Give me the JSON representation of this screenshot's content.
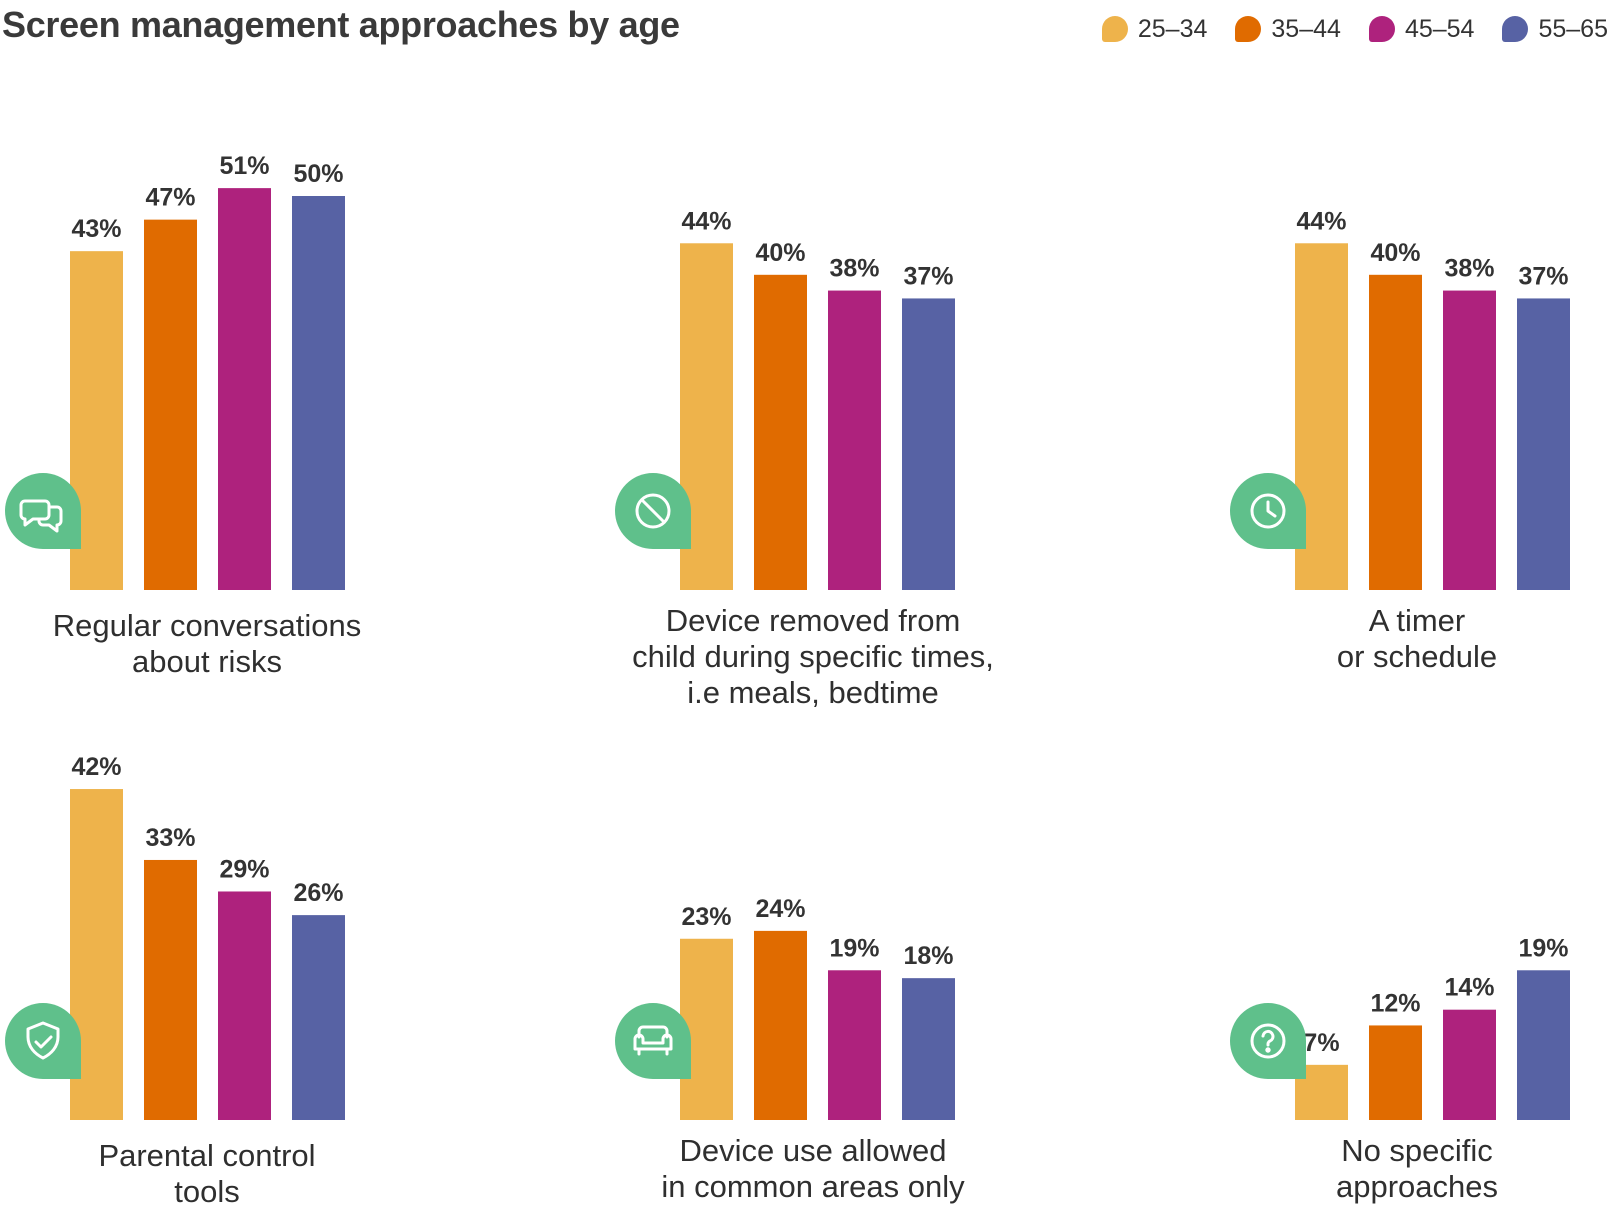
{
  "chart_data": {
    "type": "bar",
    "title": "Screen management approaches by age",
    "legend": {
      "placement": "top-right",
      "entries": [
        "25–34",
        "35–44",
        "45–54",
        "55–65"
      ]
    },
    "series": [
      {
        "name": "25–34",
        "color": "#eeb34b"
      },
      {
        "name": "35–44",
        "color": "#e06b00"
      },
      {
        "name": "45–54",
        "color": "#ae227d"
      },
      {
        "name": "55–65",
        "color": "#5762a4"
      }
    ],
    "unit": "%",
    "panels": [
      {
        "label_lines": [
          "Regular conversations",
          "about risks"
        ],
        "icon": "speech-bubbles-icon",
        "values": [
          43,
          47,
          51,
          50
        ],
        "value_labels": [
          "43%",
          "47%",
          "51%",
          "50%"
        ]
      },
      {
        "label_lines": [
          "Device removed from",
          "child during specific times,",
          "i.e meals, bedtime"
        ],
        "icon": "no-entry-icon",
        "values": [
          44,
          40,
          38,
          37
        ],
        "value_labels": [
          "44%",
          "40%",
          "38%",
          "37%"
        ]
      },
      {
        "label_lines": [
          "A timer",
          "or schedule"
        ],
        "icon": "clock-icon",
        "values": [
          44,
          40,
          38,
          37
        ],
        "value_labels": [
          "44%",
          "40%",
          "38%",
          "37%"
        ]
      },
      {
        "label_lines": [
          "Parental control",
          "tools"
        ],
        "icon": "shield-check-icon",
        "values": [
          42,
          33,
          29,
          26
        ],
        "value_labels": [
          "42%",
          "33%",
          "29%",
          "26%"
        ]
      },
      {
        "label_lines": [
          "Device use allowed",
          "in common areas only"
        ],
        "icon": "sofa-icon",
        "values": [
          23,
          24,
          19,
          18
        ],
        "value_labels": [
          "23%",
          "24%",
          "19%",
          "18%"
        ]
      },
      {
        "label_lines": [
          "No specific",
          "approaches"
        ],
        "icon": "question-mark-icon",
        "values": [
          7,
          12,
          14,
          19
        ],
        "value_labels": [
          "7%",
          "12%",
          "14%",
          "19%"
        ]
      }
    ]
  },
  "colors": {
    "icon_bubble": "#5fc08b",
    "value_text": "#333333",
    "label_text": "#2f2f2f"
  }
}
